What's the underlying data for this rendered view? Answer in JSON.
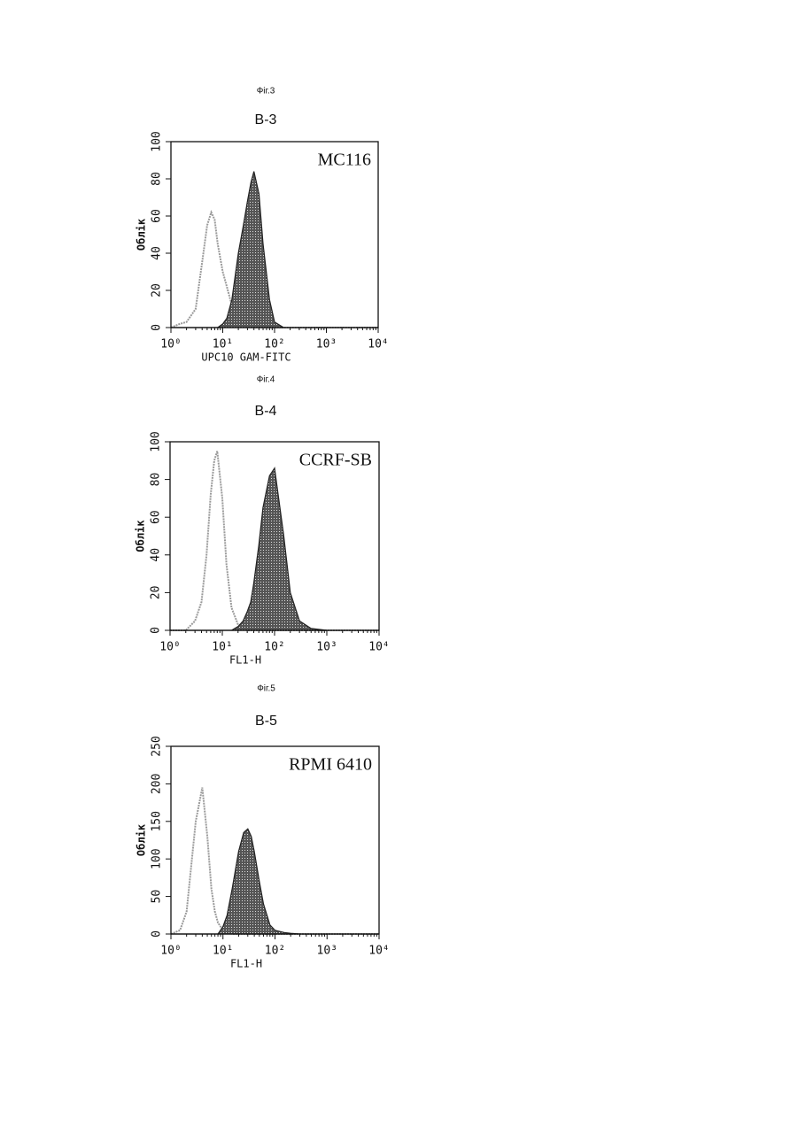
{
  "chart_data": [
    {
      "type": "line",
      "figure_label": "Фіг.3",
      "title": "B-3",
      "annotation": "MC116",
      "xlabel": "UPC10 GAM-FITC",
      "ylabel": "Облік",
      "log_x": true,
      "xlim": [
        1,
        10000
      ],
      "xticks": [
        {
          "value": 1,
          "label": "10⁰"
        },
        {
          "value": 10,
          "label": "10¹"
        },
        {
          "value": 100,
          "label": "10²"
        },
        {
          "value": 1000,
          "label": "10³"
        },
        {
          "value": 10000,
          "label": "10⁴"
        }
      ],
      "ylim": [
        0,
        100
      ],
      "yticks": [
        0,
        20,
        40,
        60,
        80,
        100
      ],
      "x": [
        1,
        1.5,
        2,
        3,
        4,
        5,
        6,
        7,
        8,
        10,
        12,
        15,
        20,
        25,
        30,
        35,
        40,
        50,
        60,
        80,
        100,
        150,
        200,
        300,
        500,
        1000,
        10000
      ],
      "series": [
        {
          "color": "#9a9a9a",
          "filled": false,
          "values": [
            0,
            2,
            3,
            10,
            35,
            55,
            62,
            58,
            45,
            30,
            22,
            12,
            5,
            3,
            1,
            0,
            0,
            0,
            0,
            0,
            0,
            0,
            0,
            0,
            0,
            0,
            0
          ]
        },
        {
          "color": "#222222",
          "filled": true,
          "values": [
            0,
            0,
            0,
            0,
            0,
            0,
            0,
            0,
            0,
            2,
            5,
            15,
            40,
            55,
            68,
            78,
            84,
            72,
            45,
            15,
            3,
            0,
            0,
            0,
            0,
            0,
            0
          ]
        }
      ]
    },
    {
      "type": "line",
      "figure_label": "Фіг.4",
      "title": "B-4",
      "annotation": "CCRF-SB",
      "xlabel": "FL1-H",
      "ylabel": "Облік",
      "log_x": true,
      "xlim": [
        1,
        10000
      ],
      "xticks": [
        {
          "value": 1,
          "label": "10⁰"
        },
        {
          "value": 10,
          "label": "10¹"
        },
        {
          "value": 100,
          "label": "10²"
        },
        {
          "value": 1000,
          "label": "10³"
        },
        {
          "value": 10000,
          "label": "10⁴"
        }
      ],
      "ylim": [
        0,
        100
      ],
      "yticks": [
        0,
        20,
        40,
        60,
        80,
        100
      ],
      "x": [
        1,
        1.5,
        2,
        3,
        4,
        5,
        6,
        7,
        8,
        10,
        12,
        15,
        20,
        25,
        30,
        35,
        40,
        50,
        60,
        80,
        100,
        150,
        200,
        300,
        500,
        1000,
        10000
      ],
      "series": [
        {
          "color": "#9a9a9a",
          "filled": false,
          "values": [
            0,
            0,
            0,
            5,
            15,
            40,
            72,
            90,
            95,
            70,
            35,
            12,
            3,
            1,
            0,
            0,
            0,
            0,
            0,
            0,
            0,
            0,
            0,
            0,
            0,
            0,
            0
          ]
        },
        {
          "color": "#222222",
          "filled": true,
          "values": [
            0,
            0,
            0,
            0,
            0,
            0,
            0,
            0,
            0,
            0,
            0,
            0,
            2,
            5,
            10,
            15,
            25,
            45,
            65,
            82,
            86,
            50,
            20,
            5,
            1,
            0,
            0
          ]
        }
      ]
    },
    {
      "type": "line",
      "figure_label": "Фіг.5",
      "title": "B-5",
      "annotation": "RPMI 6410",
      "xlabel": "FL1-H",
      "ylabel": "Облік",
      "log_x": true,
      "xlim": [
        1,
        10000
      ],
      "xticks": [
        {
          "value": 1,
          "label": "10⁰"
        },
        {
          "value": 10,
          "label": "10¹"
        },
        {
          "value": 100,
          "label": "10²"
        },
        {
          "value": 1000,
          "label": "10³"
        },
        {
          "value": 10000,
          "label": "10⁴"
        }
      ],
      "ylim": [
        0,
        250
      ],
      "yticks": [
        0,
        50,
        100,
        150,
        200,
        250
      ],
      "x": [
        1,
        1.5,
        2,
        3,
        4,
        5,
        6,
        7,
        8,
        10,
        12,
        15,
        20,
        25,
        30,
        35,
        40,
        50,
        60,
        80,
        100,
        150,
        200,
        300,
        500,
        1000,
        10000
      ],
      "series": [
        {
          "color": "#9a9a9a",
          "filled": false,
          "values": [
            0,
            5,
            30,
            150,
            195,
            130,
            60,
            30,
            15,
            5,
            2,
            0,
            0,
            0,
            0,
            0,
            0,
            0,
            0,
            0,
            0,
            0,
            0,
            0,
            0,
            0,
            0
          ]
        },
        {
          "color": "#222222",
          "filled": true,
          "values": [
            0,
            0,
            0,
            0,
            0,
            0,
            0,
            0,
            0,
            10,
            25,
            60,
            110,
            135,
            140,
            130,
            110,
            70,
            40,
            12,
            5,
            2,
            1,
            0,
            0,
            0,
            0
          ]
        }
      ]
    }
  ]
}
